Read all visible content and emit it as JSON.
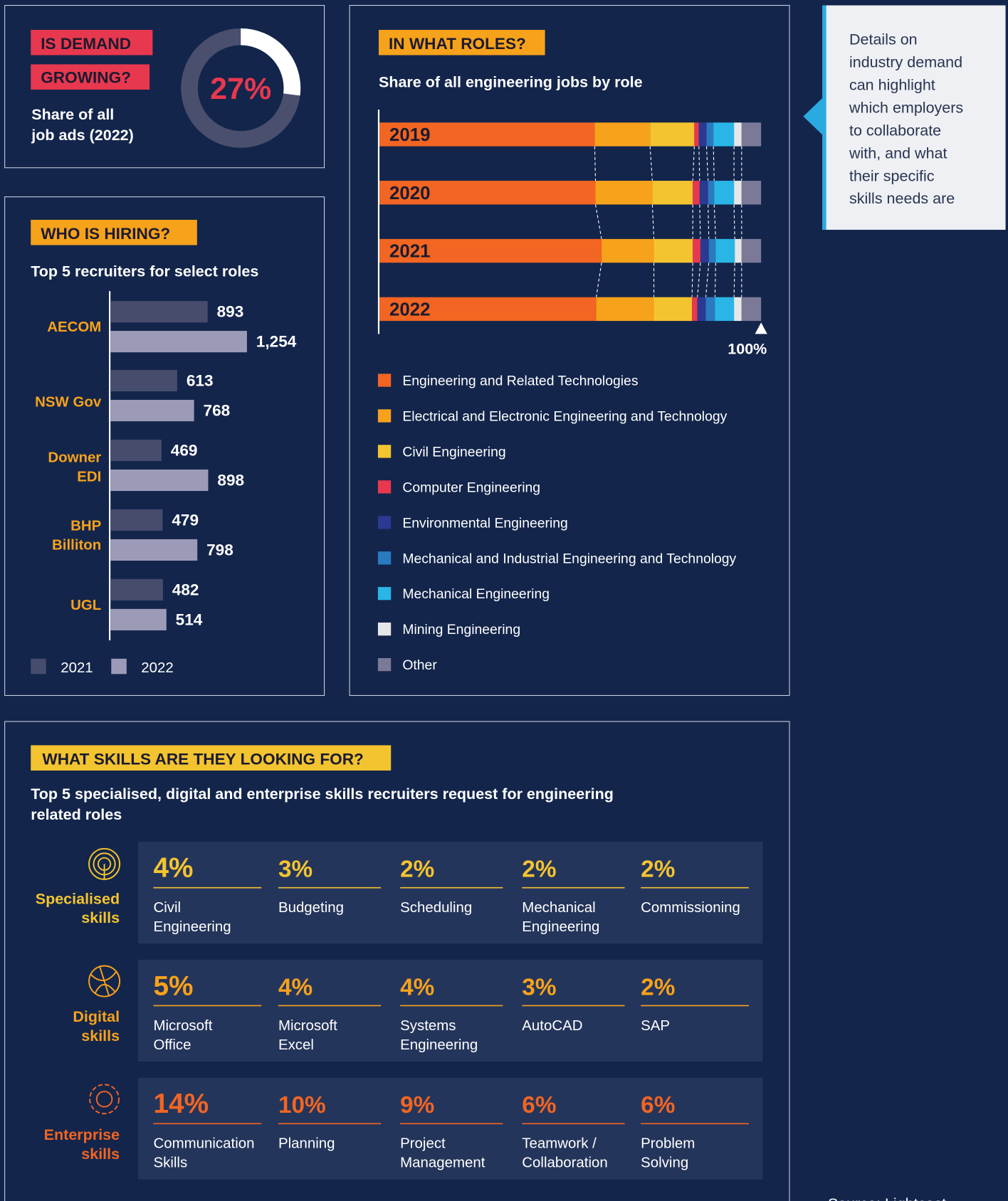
{
  "note": "Details on\nindustry demand\ncan highlight\nwhich employers\nto collaborate\nwith, and what\ntheir specific\nskills needs are",
  "source": "Source: Lightcast",
  "chart_data": [
    {
      "type": "donut",
      "title": "IS DEMAND\nGROWING?",
      "subtitle": "Share of all\njob ads (2022)",
      "values": [
        27
      ],
      "value_labels": [
        "27%"
      ],
      "color": "#ffffff",
      "track_color": "#4a4f6e",
      "label_color": "#e8384f"
    },
    {
      "type": "bar",
      "orientation": "horizontal",
      "title": "WHO IS HIRING?",
      "subtitle": "Top 5 recruiters for select roles",
      "categories": [
        "AECOM",
        "NSW Gov",
        "Downer\nEDI",
        "BHP\nBilliton",
        "UGL"
      ],
      "series": [
        {
          "name": "2021",
          "color": "#464c6c",
          "values": [
            893,
            613,
            469,
            479,
            482
          ]
        },
        {
          "name": "2022",
          "color": "#9b9bb8",
          "values": [
            1254,
            768,
            898,
            798,
            514
          ],
          "value_labels": [
            "1,254",
            "768",
            "898",
            "798",
            "514"
          ]
        }
      ],
      "legend": "bottom-left"
    },
    {
      "type": "stacked_bar",
      "title": "IN WHAT ROLES?",
      "subtitle": "Share of all engineering jobs by role",
      "categories": [
        "2019",
        "2020",
        "2021",
        "2022"
      ],
      "xlim": [
        0,
        100
      ],
      "xticks": [
        {
          "value": 100,
          "label": "100%"
        }
      ],
      "legend": "bottom",
      "series": [
        {
          "name": "Engineering and Related Technologies",
          "color": "#f26522",
          "values": [
            56.4,
            56.6,
            58.2,
            56.8
          ]
        },
        {
          "name": "Electrical and Electronic Engineering and Technology",
          "color": "#f7a21b",
          "values": [
            14.5,
            14.9,
            13.7,
            15.1
          ]
        },
        {
          "name": "Civil Engineering",
          "color": "#f4c430",
          "values": [
            11.6,
            10.6,
            10.2,
            10.0
          ]
        },
        {
          "name": "Computer Engineering",
          "color": "#e8384f",
          "values": [
            1.2,
            1.8,
            2.0,
            1.4
          ]
        },
        {
          "name": "Environmental Engineering",
          "color": "#2b3990",
          "values": [
            2.0,
            2.2,
            2.2,
            2.2
          ]
        },
        {
          "name": "Mechanical and Industrial Engineering and Technology",
          "color": "#2a7ac0",
          "values": [
            1.8,
            1.6,
            1.8,
            2.4
          ]
        },
        {
          "name": "Mechanical Engineering",
          "color": "#29b6e6",
          "values": [
            5.4,
            5.2,
            5.0,
            5.0
          ]
        },
        {
          "name": "Mining Engineering",
          "color": "#e6e7e8",
          "values": [
            2.0,
            2.0,
            1.8,
            2.0
          ]
        },
        {
          "name": "Other",
          "color": "#7a7a98",
          "values": [
            5.1,
            5.1,
            5.1,
            5.1
          ]
        }
      ]
    }
  ],
  "skills": {
    "title": "WHAT SKILLS ARE THEY LOOKING FOR?",
    "subtitle": "Top 5 specialised, digital and enterprise skills recruiters request for engineering\nrelated roles",
    "groups": [
      {
        "label": "Specialised\nskills",
        "color": "#f4c430",
        "items": [
          {
            "value": "4%",
            "name": "Civil\nEngineering"
          },
          {
            "value": "3%",
            "name": "Budgeting"
          },
          {
            "value": "2%",
            "name": "Scheduling"
          },
          {
            "value": "2%",
            "name": "Mechanical\nEngineering"
          },
          {
            "value": "2%",
            "name": "Commissioning"
          }
        ]
      },
      {
        "label": "Digital\nskills",
        "color": "#f7a21b",
        "items": [
          {
            "value": "5%",
            "name": "Microsoft\nOffice"
          },
          {
            "value": "4%",
            "name": "Microsoft\nExcel"
          },
          {
            "value": "4%",
            "name": "Systems\nEngineering"
          },
          {
            "value": "3%",
            "name": "AutoCAD"
          },
          {
            "value": "2%",
            "name": "SAP"
          }
        ]
      },
      {
        "label": "Enterprise\nskills",
        "color": "#f26522",
        "items": [
          {
            "value": "14%",
            "name": "Communication\nSkills"
          },
          {
            "value": "10%",
            "name": "Planning"
          },
          {
            "value": "9%",
            "name": "Project\nManagement"
          },
          {
            "value": "6%",
            "name": "Teamwork /\nCollaboration"
          },
          {
            "value": "6%",
            "name": "Problem\nSolving"
          }
        ]
      }
    ]
  }
}
